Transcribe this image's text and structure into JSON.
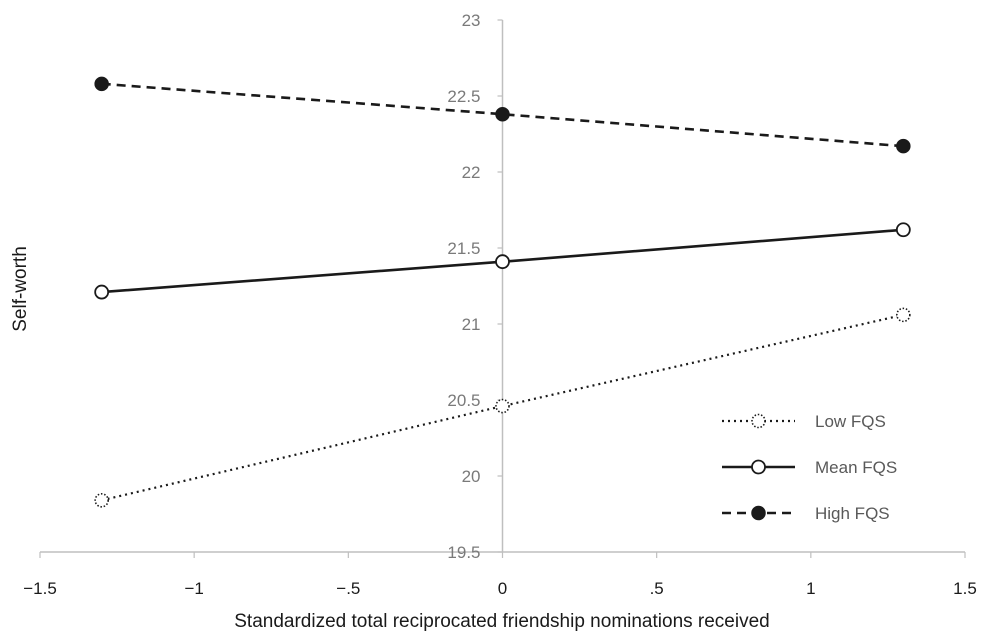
{
  "chart_data": {
    "type": "line",
    "xlabel": "Standardized total reciprocated friendship nominations received",
    "ylabel": "Self-worth",
    "xlim": [
      -1.5,
      1.5
    ],
    "ylim": [
      19.5,
      23
    ],
    "x_ticks": [
      -1.5,
      -1,
      -0.5,
      0,
      0.5,
      1,
      1.5
    ],
    "x_tick_labels": [
      "−1.5",
      "−1",
      "−.5",
      "0",
      ".5",
      "1",
      "1.5"
    ],
    "y_ticks": [
      19.5,
      20,
      20.5,
      21,
      21.5,
      22,
      22.5,
      23
    ],
    "y_tick_labels": [
      "19.5",
      "20",
      "20.5",
      "21",
      "21.5",
      "22",
      "22.5",
      "23"
    ],
    "legend_position": "bottom-right",
    "grid": false,
    "series": [
      {
        "name": "Low FQS",
        "line_style": "dotted",
        "marker": "open-circle-dotted",
        "color": "#1a1a1a",
        "x": [
          -1.3,
          0,
          1.3
        ],
        "y": [
          19.84,
          20.46,
          21.06
        ]
      },
      {
        "name": "Mean FQS",
        "line_style": "solid",
        "marker": "open-circle",
        "color": "#1a1a1a",
        "x": [
          -1.3,
          0,
          1.3
        ],
        "y": [
          21.21,
          21.41,
          21.62
        ]
      },
      {
        "name": "High FQS",
        "line_style": "dashed",
        "marker": "filled-circle",
        "color": "#1a1a1a",
        "x": [
          -1.3,
          0,
          1.3
        ],
        "y": [
          22.58,
          22.38,
          22.17
        ]
      }
    ]
  }
}
